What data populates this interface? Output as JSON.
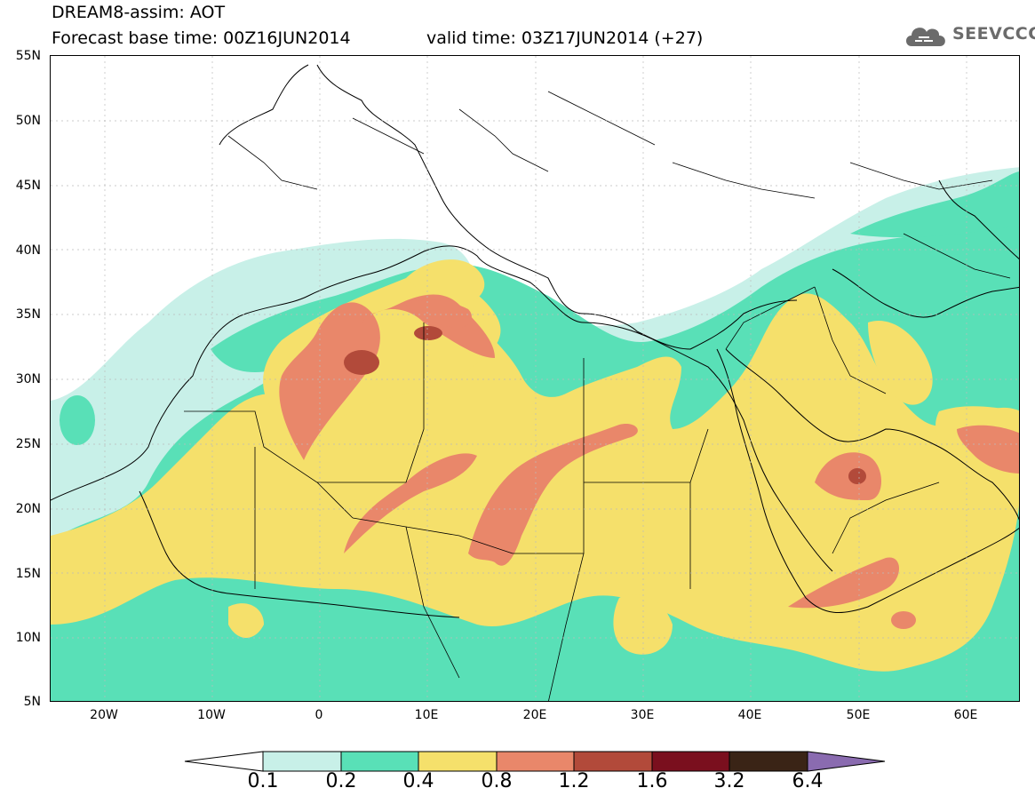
{
  "header": {
    "title_line1": "DREAM8-assim: AOT",
    "title_line2": "Forecast base time: 00Z16JUN2014",
    "valid_time": "valid time: 03Z17JUN2014 (+27)",
    "logo_text": "SEEVCCC",
    "logo_icon": "cloud-icon"
  },
  "map": {
    "lat_labels": [
      "55N",
      "50N",
      "45N",
      "40N",
      "35N",
      "30N",
      "25N",
      "20N",
      "15N",
      "10N",
      "5N"
    ],
    "lon_labels": [
      "20W",
      "10W",
      "0",
      "10E",
      "20E",
      "30E",
      "40E",
      "50E",
      "60E"
    ],
    "lat_range": [
      5,
      55
    ],
    "lon_range": [
      -25,
      65
    ]
  },
  "legend": {
    "labels": [
      "0.1",
      "0.2",
      "0.4",
      "0.8",
      "1.2",
      "1.6",
      "3.2",
      "6.4"
    ],
    "colors": [
      "#ffffff",
      "#c8f0e8",
      "#59e0b7",
      "#f5e06b",
      "#e9876a",
      "#b24a3a",
      "#7a0f1e",
      "#3a2416",
      "#8a6bb0"
    ]
  },
  "colors": {
    "very_low": "#c8f0e8",
    "low": "#59e0b7",
    "medium": "#f5e06b",
    "high": "#e9876a",
    "very_high": "#b24a3a"
  }
}
